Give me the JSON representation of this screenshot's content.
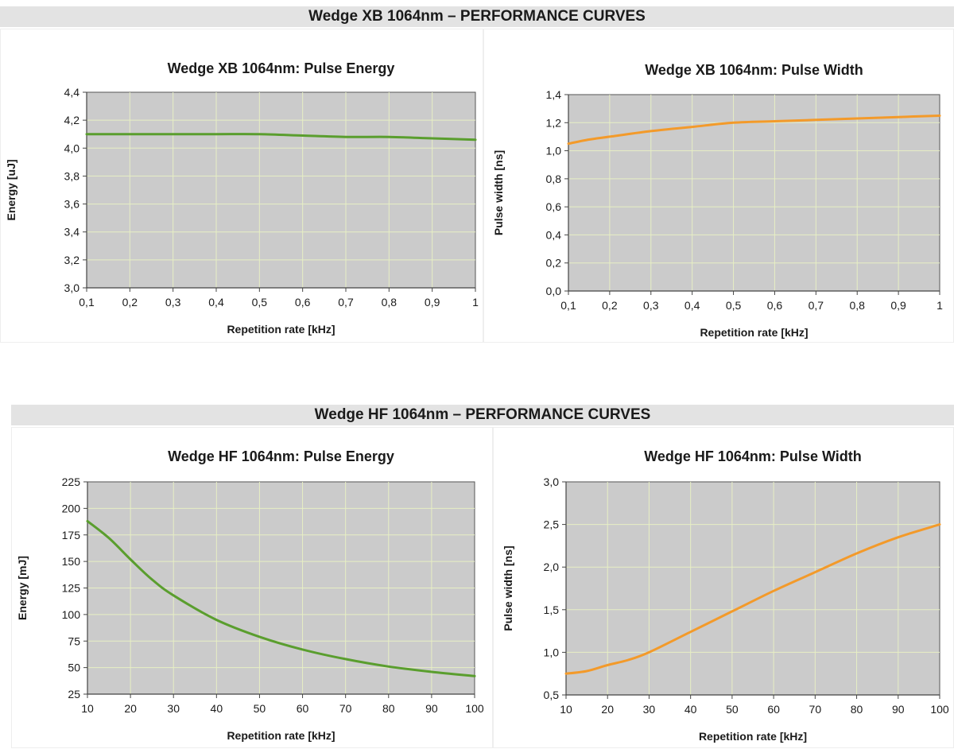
{
  "sections": [
    {
      "banner": "Wedge XB 1064nm – PERFORMANCE CURVES"
    },
    {
      "banner": "Wedge HF 1064nm – PERFORMANCE CURVES"
    }
  ],
  "chart_data": [
    {
      "type": "line",
      "title": "Wedge XB 1064nm: Pulse Energy",
      "xlabel": "Repetition rate [kHz]",
      "ylabel": "Energy [uJ]",
      "xlim": [
        0.1,
        1
      ],
      "ylim": [
        3.0,
        4.4
      ],
      "xticks": [
        "0,1",
        "0,2",
        "0,3",
        "0,4",
        "0,5",
        "0,6",
        "0,7",
        "0,8",
        "0,9",
        "1"
      ],
      "yticks": [
        "3,0",
        "3,2",
        "3,4",
        "3,6",
        "3,8",
        "4,0",
        "4,2",
        "4,4"
      ],
      "grid": true,
      "series": [
        {
          "color": "#5a9e2e",
          "x": [
            0.1,
            0.2,
            0.3,
            0.4,
            0.5,
            0.6,
            0.7,
            0.8,
            0.9,
            1.0
          ],
          "y": [
            4.1,
            4.1,
            4.1,
            4.1,
            4.1,
            4.09,
            4.08,
            4.08,
            4.07,
            4.06
          ]
        }
      ]
    },
    {
      "type": "line",
      "title": "Wedge XB 1064nm: Pulse Width",
      "xlabel": "Repetition rate [kHz]",
      "ylabel": "Pulse width [ns]",
      "xlim": [
        0.1,
        1
      ],
      "ylim": [
        0.0,
        1.4
      ],
      "xticks": [
        "0,1",
        "0,2",
        "0,3",
        "0,4",
        "0,5",
        "0,6",
        "0,7",
        "0,8",
        "0,9",
        "1"
      ],
      "yticks": [
        "0,0",
        "0,2",
        "0,4",
        "0,6",
        "0,8",
        "1,0",
        "1,2",
        "1,4"
      ],
      "grid": true,
      "series": [
        {
          "color": "#f39a2a",
          "x": [
            0.1,
            0.15,
            0.2,
            0.3,
            0.4,
            0.5,
            0.6,
            0.7,
            0.8,
            0.9,
            1.0
          ],
          "y": [
            1.05,
            1.08,
            1.1,
            1.14,
            1.17,
            1.2,
            1.21,
            1.22,
            1.23,
            1.24,
            1.25
          ]
        }
      ]
    },
    {
      "type": "line",
      "title": "Wedge HF 1064nm: Pulse Energy",
      "xlabel": "Repetition rate [kHz]",
      "ylabel": "Energy [mJ]",
      "xlim": [
        10,
        100
      ],
      "ylim": [
        25,
        225
      ],
      "xticks": [
        "10",
        "20",
        "30",
        "40",
        "50",
        "60",
        "70",
        "80",
        "90",
        "100"
      ],
      "yticks": [
        "25",
        "50",
        "75",
        "100",
        "125",
        "150",
        "175",
        "200",
        "225"
      ],
      "grid": true,
      "series": [
        {
          "color": "#5a9e2e",
          "x": [
            10,
            15,
            20,
            25,
            30,
            40,
            50,
            60,
            70,
            80,
            90,
            100
          ],
          "y": [
            188,
            172,
            152,
            133,
            118,
            95,
            79,
            67,
            58,
            51,
            46,
            42
          ]
        }
      ]
    },
    {
      "type": "line",
      "title": "Wedge HF 1064nm: Pulse Width",
      "xlabel": "Repetition rate [kHz]",
      "ylabel": "Pulse width [ns]",
      "xlim": [
        10,
        100
      ],
      "ylim": [
        0.5,
        3.0
      ],
      "xticks": [
        "10",
        "20",
        "30",
        "40",
        "50",
        "60",
        "70",
        "80",
        "90",
        "100"
      ],
      "yticks": [
        "0,5",
        "1,0",
        "1,5",
        "2,0",
        "2,5",
        "3,0"
      ],
      "grid": true,
      "series": [
        {
          "color": "#f39a2a",
          "x": [
            10,
            15,
            20,
            25,
            30,
            40,
            50,
            60,
            70,
            80,
            90,
            100
          ],
          "y": [
            0.75,
            0.78,
            0.85,
            0.91,
            1.0,
            1.24,
            1.48,
            1.72,
            1.94,
            2.16,
            2.35,
            2.5
          ]
        }
      ]
    }
  ]
}
